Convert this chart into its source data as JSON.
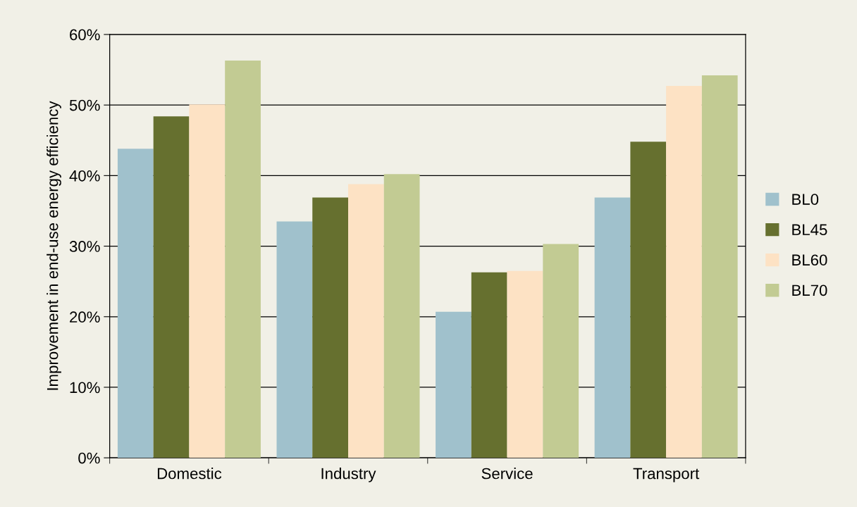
{
  "chart_data": {
    "type": "bar",
    "ylabel": "Improvement in end-use energy efficiency",
    "categories": [
      "Domestic",
      "Industry",
      "Service",
      "Transport"
    ],
    "series": [
      {
        "name": "BL0",
        "color": "#a0c1cc",
        "values": [
          43.8,
          33.5,
          20.7,
          36.9
        ]
      },
      {
        "name": "BL45",
        "color": "#66702f",
        "values": [
          48.4,
          36.9,
          26.3,
          44.8
        ]
      },
      {
        "name": "BL60",
        "color": "#fde2c4",
        "values": [
          50.1,
          38.8,
          26.5,
          52.7
        ]
      },
      {
        "name": "BL70",
        "color": "#c2cb93",
        "values": [
          56.3,
          40.2,
          30.3,
          54.2
        ]
      }
    ],
    "ylim": [
      0,
      60
    ],
    "yticks": [
      {
        "value": 0,
        "label": "0%"
      },
      {
        "value": 10,
        "label": "10%"
      },
      {
        "value": 20,
        "label": "20%"
      },
      {
        "value": 30,
        "label": "30%"
      },
      {
        "value": 40,
        "label": "40%"
      },
      {
        "value": 50,
        "label": "50%"
      },
      {
        "value": 60,
        "label": "60%"
      }
    ],
    "grid": "y",
    "legend": "right"
  }
}
